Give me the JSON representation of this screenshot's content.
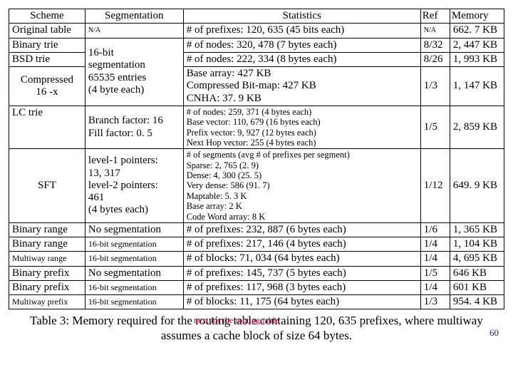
{
  "header": {
    "scheme": "Scheme",
    "segmentation": "Segmentation",
    "statistics": "Statistics",
    "ref": "Ref",
    "memory": "Memory"
  },
  "rows": {
    "r1": {
      "scheme": "Original table",
      "seg": "N/A",
      "stats": "# of prefixes: 120, 635 (45 bits each)",
      "ref": "N/A",
      "mem": "662. 7 KB"
    },
    "r2": {
      "scheme": "Binary trie",
      "stats": "# of nodes: 320, 478 (7 bytes each)",
      "ref": "8/32",
      "mem": "2, 447 KB"
    },
    "r3": {
      "scheme": "BSD trie",
      "stats": "# of nodes: 222, 334 (8 bytes each)",
      "ref": "8/26",
      "mem": "1, 993 KB"
    },
    "seg_shared": "16-bit\nsegmentation\n65535 entries\n(4 byte each)",
    "r4": {
      "scheme": "Compressed\n16 -x",
      "stats": "Base array: 427 KB\nCompressed Bit-map: 427 KB\nCNHA: 37. 9 KB",
      "ref": "1/3",
      "mem": "1, 147 KB"
    },
    "r5": {
      "scheme": "LC trie",
      "seg": "Branch factor: 16\nFill factor: 0. 5",
      "stats": "# of nodes: 259, 371 (4 bytes each)\nBase vector: 110, 679 (16 bytes each)\nPrefix vector: 9, 927 (12 bytes each)\nNext Hop vector: 255 (4 bytes each)",
      "ref": "1/5",
      "mem": "2, 859 KB"
    },
    "r6": {
      "scheme": "SFT",
      "seg": "level-1 pointers:\n13, 317\nlevel-2 pointers:\n461\n(4 bytes each)",
      "stats": "# of segments (avg # of prefixes per segment)\nSparse: 2, 765 (2. 9)\nDense: 4, 300 (25. 5)\nVery dense: 586 (91. 7)\nMaptable: 5. 3 K\nBase array: 2 K\nCode Word array: 8 K",
      "ref": "1/12",
      "mem": "649. 9 KB"
    },
    "r7": {
      "scheme": "Binary range",
      "seg": "No segmentation",
      "stats": "# of prefixes: 232, 887 (6 bytes each)",
      "ref": "1/6",
      "mem": "1, 365 KB"
    },
    "r8": {
      "scheme": "Binary range",
      "seg": "16-bit segmentation",
      "stats": "# of prefixes: 217, 146 (4 bytes each)",
      "ref": "1/4",
      "mem": "1, 104 KB"
    },
    "r9": {
      "scheme": "Multiway range",
      "seg": "16-bit segmentation",
      "stats": "# of blocks: 71, 034 (64 bytes each)",
      "ref": "1/4",
      "mem": "4, 695 KB"
    },
    "r10": {
      "scheme": "Binary prefix",
      "seg": "No segmentation",
      "stats": "# of prefixes: 145, 737 (5 bytes each)",
      "ref": "1/5",
      "mem": "646 KB"
    },
    "r11": {
      "scheme": "Binary prefix",
      "seg": "16-bit segmentation",
      "stats": "# of prefixes: 117, 968 (3 bytes each)",
      "ref": "1/4",
      "mem": "601 KB"
    },
    "r12": {
      "scheme": "Multiway prefix",
      "seg": "16-bit segmentation",
      "stats": "# of blocks: 11, 175 (64 bytes each)",
      "ref": "1/3",
      "mem": "954. 4 KB"
    }
  },
  "caption": "Table 3: Memory required for the routing table containing 120, 635 prefixes, where multiway assumes a cache block of size 64 bytes.",
  "overlap_text": "next for the routing table",
  "page_number": "60"
}
